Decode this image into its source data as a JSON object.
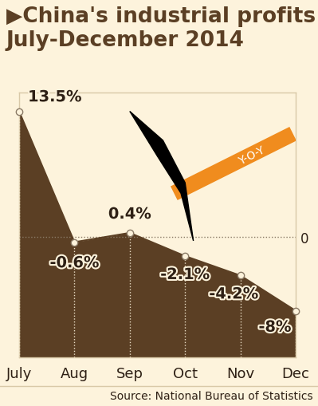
{
  "chart_data": {
    "type": "area",
    "title": "▶China's industrial profits July-December 2014",
    "annotation": "Y-O-Y",
    "source": "Source: National Bureau of Statistics",
    "categories": [
      "July",
      "Aug",
      "Sep",
      "Oct",
      "Nov",
      "Dec"
    ],
    "values": [
      13.5,
      -0.6,
      0.4,
      -2.1,
      -4.2,
      -8
    ],
    "value_labels": [
      "13.5%",
      "-0.6%",
      "0.4%",
      "-2.1%",
      "-4.2%",
      "-8%"
    ],
    "color": "#5b3f24",
    "ylim": [
      -13,
      15.5
    ],
    "yticks": [
      0
    ],
    "grid": true,
    "data_labels": true,
    "marker": "o"
  }
}
